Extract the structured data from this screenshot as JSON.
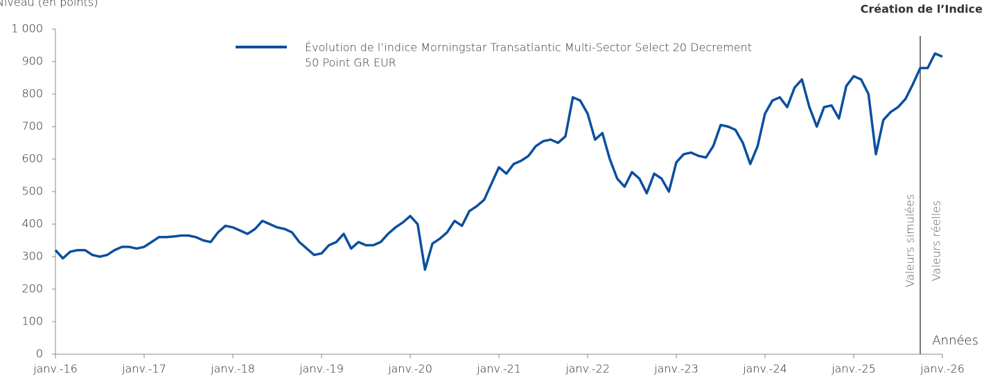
{
  "chart_data": {
    "type": "line",
    "y_label": "Niveau (en points)",
    "x_label": "Années",
    "creation": {
      "x": "2025-10",
      "label": "Création de l’Indice"
    },
    "annotations": [
      "Valeurs simulées",
      "Valeurs réelles"
    ],
    "xlim": [
      "2016-01",
      "2026-01"
    ],
    "xticks": [
      {
        "value": "2016-01",
        "label": "janv.-16"
      },
      {
        "value": "2017-01",
        "label": "janv.-17"
      },
      {
        "value": "2018-01",
        "label": "janv.-18"
      },
      {
        "value": "2019-01",
        "label": "janv.-19"
      },
      {
        "value": "2020-01",
        "label": "janv.-20"
      },
      {
        "value": "2021-01",
        "label": "janv.-21"
      },
      {
        "value": "2022-01",
        "label": "janv.-22"
      },
      {
        "value": "2023-01",
        "label": "janv.-23"
      },
      {
        "value": "2024-01",
        "label": "janv.-24"
      },
      {
        "value": "2025-01",
        "label": "janv.-25"
      },
      {
        "value": "2026-01",
        "label": "janv.-26"
      }
    ],
    "ylim": [
      0,
      1000
    ],
    "yticks": [
      0,
      100,
      200,
      300,
      400,
      500,
      600,
      700,
      800,
      900,
      {
        "value": 1000,
        "label": "1 000"
      }
    ],
    "x": [
      "2016-01",
      "2016-02",
      "2016-03",
      "2016-04",
      "2016-05",
      "2016-06",
      "2016-07",
      "2016-08",
      "2016-09",
      "2016-10",
      "2016-11",
      "2016-12",
      "2017-01",
      "2017-02",
      "2017-03",
      "2017-04",
      "2017-05",
      "2017-06",
      "2017-07",
      "2017-08",
      "2017-09",
      "2017-10",
      "2017-11",
      "2017-12",
      "2018-01",
      "2018-02",
      "2018-03",
      "2018-04",
      "2018-05",
      "2018-06",
      "2018-07",
      "2018-08",
      "2018-09",
      "2018-10",
      "2018-11",
      "2018-12",
      "2019-01",
      "2019-02",
      "2019-03",
      "2019-04",
      "2019-05",
      "2019-06",
      "2019-07",
      "2019-08",
      "2019-09",
      "2019-10",
      "2019-11",
      "2019-12",
      "2020-01",
      "2020-02",
      "2020-03",
      "2020-04",
      "2020-05",
      "2020-06",
      "2020-07",
      "2020-08",
      "2020-09",
      "2020-10",
      "2020-11",
      "2020-12",
      "2021-01",
      "2021-02",
      "2021-03",
      "2021-04",
      "2021-05",
      "2021-06",
      "2021-07",
      "2021-08",
      "2021-09",
      "2021-10",
      "2021-11",
      "2021-12",
      "2022-01",
      "2022-02",
      "2022-03",
      "2022-04",
      "2022-05",
      "2022-06",
      "2022-07",
      "2022-08",
      "2022-09",
      "2022-10",
      "2022-11",
      "2022-12",
      "2023-01",
      "2023-02",
      "2023-03",
      "2023-04",
      "2023-05",
      "2023-06",
      "2023-07",
      "2023-08",
      "2023-09",
      "2023-10",
      "2023-11",
      "2023-12",
      "2024-01",
      "2024-02",
      "2024-03",
      "2024-04",
      "2024-05",
      "2024-06",
      "2024-07",
      "2024-08",
      "2024-09",
      "2024-10",
      "2024-11",
      "2024-12",
      "2025-01",
      "2025-02",
      "2025-03",
      "2025-04",
      "2025-05",
      "2025-06",
      "2025-07",
      "2025-08",
      "2025-09",
      "2025-10",
      "2025-11",
      "2025-12",
      "2026-01"
    ],
    "series": [
      {
        "name": "Évolution de l’indice Morningstar Transatlantic Multi-Sector Select 20 Decrement 50 Point GR EUR",
        "color": "#0b4f9e",
        "values": [
          320,
          295,
          315,
          320,
          320,
          305,
          300,
          305,
          320,
          330,
          330,
          325,
          330,
          345,
          360,
          360,
          362,
          365,
          365,
          360,
          350,
          345,
          375,
          395,
          390,
          380,
          370,
          385,
          410,
          400,
          390,
          385,
          375,
          345,
          325,
          305,
          310,
          335,
          345,
          370,
          325,
          345,
          335,
          335,
          345,
          370,
          390,
          405,
          425,
          400,
          260,
          340,
          355,
          375,
          410,
          395,
          440,
          455,
          475,
          525,
          575,
          555,
          585,
          595,
          610,
          640,
          655,
          660,
          650,
          670,
          790,
          780,
          740,
          660,
          680,
          600,
          540,
          515,
          560,
          540,
          495,
          555,
          540,
          500,
          590,
          615,
          620,
          610,
          605,
          640,
          705,
          700,
          690,
          650,
          585,
          640,
          740,
          780,
          790,
          760,
          820,
          845,
          760,
          700,
          760,
          765,
          725,
          825,
          855,
          845,
          800,
          615,
          720,
          745,
          760,
          785,
          830,
          880,
          880,
          925,
          915
        ]
      }
    ]
  }
}
